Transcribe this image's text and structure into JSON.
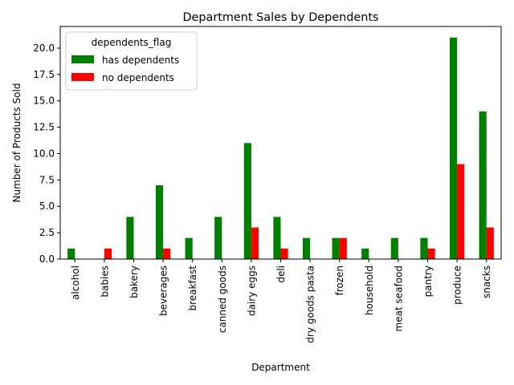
{
  "chart_data": {
    "type": "bar",
    "title": "Department Sales by Dependents",
    "xlabel": "Department",
    "ylabel": "Number of Products Sold",
    "categories": [
      "alcohol",
      "babies",
      "bakery",
      "beverages",
      "breakfast",
      "canned goods",
      "dairy eggs",
      "deli",
      "dry goods pasta",
      "frozen",
      "household",
      "meat seafood",
      "pantry",
      "produce",
      "snacks"
    ],
    "series": [
      {
        "name": "has dependents",
        "color": "#008000",
        "values": [
          1,
          0,
          4,
          7,
          2,
          4,
          11,
          4,
          2,
          2,
          1,
          2,
          2,
          21,
          14
        ]
      },
      {
        "name": "no dependents",
        "color": "#ff0000",
        "values": [
          0,
          1,
          0,
          1,
          0,
          0,
          3,
          1,
          0,
          2,
          0,
          0,
          1,
          9,
          3
        ]
      }
    ],
    "ylim": [
      0,
      22.05
    ],
    "yticks": [
      0.0,
      2.5,
      5.0,
      7.5,
      10.0,
      12.5,
      15.0,
      17.5,
      20.0
    ],
    "ytick_labels": [
      "0.0",
      "2.5",
      "5.0",
      "7.5",
      "10.0",
      "12.5",
      "15.0",
      "17.5",
      "20.0"
    ],
    "legend": {
      "title": "dependents_flag",
      "position": "top-left"
    },
    "grid": false
  }
}
